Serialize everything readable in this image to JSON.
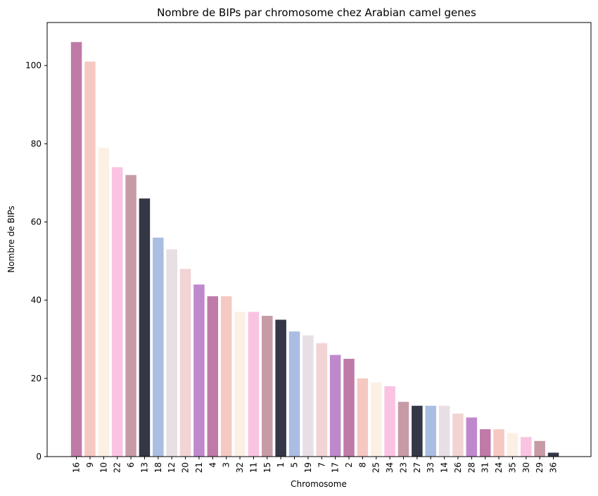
{
  "chart_data": {
    "type": "bar",
    "title": "Nombre de BIPs par chromosome chez Arabian camel genes",
    "xlabel": "Chromosome",
    "ylabel": "Nombre de BIPs",
    "ylim": [
      0,
      111
    ],
    "yticks": [
      0,
      20,
      40,
      60,
      80,
      100
    ],
    "grid": false,
    "categories": [
      "16",
      "9",
      "10",
      "22",
      "6",
      "13",
      "18",
      "12",
      "20",
      "21",
      "4",
      "3",
      "32",
      "11",
      "15",
      "1",
      "5",
      "19",
      "7",
      "17",
      "2",
      "8",
      "25",
      "34",
      "23",
      "27",
      "33",
      "14",
      "26",
      "28",
      "31",
      "24",
      "35",
      "30",
      "29",
      "36"
    ],
    "values": [
      106,
      101,
      79,
      74,
      72,
      66,
      56,
      53,
      48,
      44,
      41,
      41,
      37,
      37,
      36,
      35,
      32,
      31,
      29,
      26,
      25,
      20,
      19,
      18,
      14,
      13,
      13,
      13,
      11,
      10,
      7,
      7,
      6,
      5,
      4,
      1
    ],
    "colors": [
      "#bf7aa8",
      "#f5c9c2",
      "#fcf0e5",
      "#fbc3e2",
      "#c79ba6",
      "#343745",
      "#aabde2",
      "#e8dfe5",
      "#f1d4d3",
      "#c088cc"
    ]
  }
}
